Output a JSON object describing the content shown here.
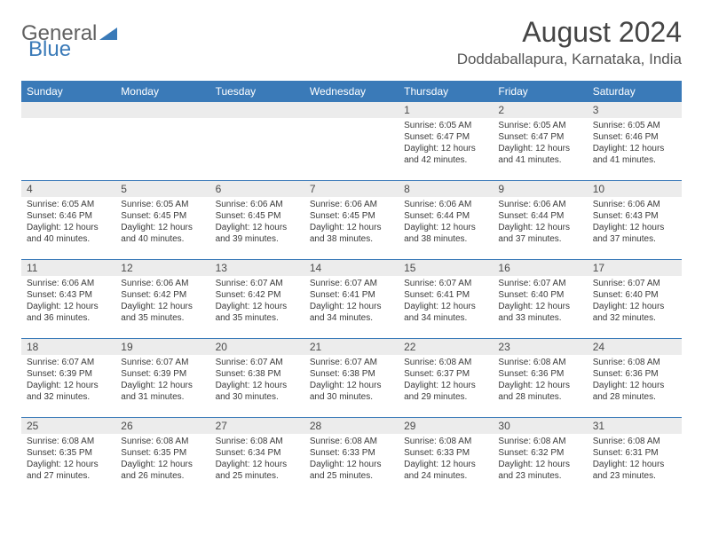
{
  "brand": {
    "part1": "General",
    "part2": "Blue"
  },
  "title": "August 2024",
  "location": "Doddaballapura, Karnataka, India",
  "colors": {
    "header_bar": "#3a7ab8",
    "day_num_bg": "#ececec",
    "week_divider": "#3a7ab8",
    "brand_gray": "#616161",
    "brand_blue": "#3a7ab8",
    "title_color": "#454545",
    "text_color": "#3a3a3a",
    "background": "#ffffff"
  },
  "typography": {
    "month_title_size": 32,
    "location_size": 17,
    "dow_size": 12,
    "daynum_size": 12,
    "body_size": 10,
    "font_family": "Arial"
  },
  "dow": [
    "Sunday",
    "Monday",
    "Tuesday",
    "Wednesday",
    "Thursday",
    "Friday",
    "Saturday"
  ],
  "weeks": [
    [
      {
        "n": "",
        "sr": "",
        "ss": "",
        "dl": "",
        "empty": true
      },
      {
        "n": "",
        "sr": "",
        "ss": "",
        "dl": "",
        "empty": true
      },
      {
        "n": "",
        "sr": "",
        "ss": "",
        "dl": "",
        "empty": true
      },
      {
        "n": "",
        "sr": "",
        "ss": "",
        "dl": "",
        "empty": true
      },
      {
        "n": "1",
        "sr": "Sunrise: 6:05 AM",
        "ss": "Sunset: 6:47 PM",
        "dl": "Daylight: 12 hours and 42 minutes."
      },
      {
        "n": "2",
        "sr": "Sunrise: 6:05 AM",
        "ss": "Sunset: 6:47 PM",
        "dl": "Daylight: 12 hours and 41 minutes."
      },
      {
        "n": "3",
        "sr": "Sunrise: 6:05 AM",
        "ss": "Sunset: 6:46 PM",
        "dl": "Daylight: 12 hours and 41 minutes."
      }
    ],
    [
      {
        "n": "4",
        "sr": "Sunrise: 6:05 AM",
        "ss": "Sunset: 6:46 PM",
        "dl": "Daylight: 12 hours and 40 minutes."
      },
      {
        "n": "5",
        "sr": "Sunrise: 6:05 AM",
        "ss": "Sunset: 6:45 PM",
        "dl": "Daylight: 12 hours and 40 minutes."
      },
      {
        "n": "6",
        "sr": "Sunrise: 6:06 AM",
        "ss": "Sunset: 6:45 PM",
        "dl": "Daylight: 12 hours and 39 minutes."
      },
      {
        "n": "7",
        "sr": "Sunrise: 6:06 AM",
        "ss": "Sunset: 6:45 PM",
        "dl": "Daylight: 12 hours and 38 minutes."
      },
      {
        "n": "8",
        "sr": "Sunrise: 6:06 AM",
        "ss": "Sunset: 6:44 PM",
        "dl": "Daylight: 12 hours and 38 minutes."
      },
      {
        "n": "9",
        "sr": "Sunrise: 6:06 AM",
        "ss": "Sunset: 6:44 PM",
        "dl": "Daylight: 12 hours and 37 minutes."
      },
      {
        "n": "10",
        "sr": "Sunrise: 6:06 AM",
        "ss": "Sunset: 6:43 PM",
        "dl": "Daylight: 12 hours and 37 minutes."
      }
    ],
    [
      {
        "n": "11",
        "sr": "Sunrise: 6:06 AM",
        "ss": "Sunset: 6:43 PM",
        "dl": "Daylight: 12 hours and 36 minutes."
      },
      {
        "n": "12",
        "sr": "Sunrise: 6:06 AM",
        "ss": "Sunset: 6:42 PM",
        "dl": "Daylight: 12 hours and 35 minutes."
      },
      {
        "n": "13",
        "sr": "Sunrise: 6:07 AM",
        "ss": "Sunset: 6:42 PM",
        "dl": "Daylight: 12 hours and 35 minutes."
      },
      {
        "n": "14",
        "sr": "Sunrise: 6:07 AM",
        "ss": "Sunset: 6:41 PM",
        "dl": "Daylight: 12 hours and 34 minutes."
      },
      {
        "n": "15",
        "sr": "Sunrise: 6:07 AM",
        "ss": "Sunset: 6:41 PM",
        "dl": "Daylight: 12 hours and 34 minutes."
      },
      {
        "n": "16",
        "sr": "Sunrise: 6:07 AM",
        "ss": "Sunset: 6:40 PM",
        "dl": "Daylight: 12 hours and 33 minutes."
      },
      {
        "n": "17",
        "sr": "Sunrise: 6:07 AM",
        "ss": "Sunset: 6:40 PM",
        "dl": "Daylight: 12 hours and 32 minutes."
      }
    ],
    [
      {
        "n": "18",
        "sr": "Sunrise: 6:07 AM",
        "ss": "Sunset: 6:39 PM",
        "dl": "Daylight: 12 hours and 32 minutes."
      },
      {
        "n": "19",
        "sr": "Sunrise: 6:07 AM",
        "ss": "Sunset: 6:39 PM",
        "dl": "Daylight: 12 hours and 31 minutes."
      },
      {
        "n": "20",
        "sr": "Sunrise: 6:07 AM",
        "ss": "Sunset: 6:38 PM",
        "dl": "Daylight: 12 hours and 30 minutes."
      },
      {
        "n": "21",
        "sr": "Sunrise: 6:07 AM",
        "ss": "Sunset: 6:38 PM",
        "dl": "Daylight: 12 hours and 30 minutes."
      },
      {
        "n": "22",
        "sr": "Sunrise: 6:08 AM",
        "ss": "Sunset: 6:37 PM",
        "dl": "Daylight: 12 hours and 29 minutes."
      },
      {
        "n": "23",
        "sr": "Sunrise: 6:08 AM",
        "ss": "Sunset: 6:36 PM",
        "dl": "Daylight: 12 hours and 28 minutes."
      },
      {
        "n": "24",
        "sr": "Sunrise: 6:08 AM",
        "ss": "Sunset: 6:36 PM",
        "dl": "Daylight: 12 hours and 28 minutes."
      }
    ],
    [
      {
        "n": "25",
        "sr": "Sunrise: 6:08 AM",
        "ss": "Sunset: 6:35 PM",
        "dl": "Daylight: 12 hours and 27 minutes."
      },
      {
        "n": "26",
        "sr": "Sunrise: 6:08 AM",
        "ss": "Sunset: 6:35 PM",
        "dl": "Daylight: 12 hours and 26 minutes."
      },
      {
        "n": "27",
        "sr": "Sunrise: 6:08 AM",
        "ss": "Sunset: 6:34 PM",
        "dl": "Daylight: 12 hours and 25 minutes."
      },
      {
        "n": "28",
        "sr": "Sunrise: 6:08 AM",
        "ss": "Sunset: 6:33 PM",
        "dl": "Daylight: 12 hours and 25 minutes."
      },
      {
        "n": "29",
        "sr": "Sunrise: 6:08 AM",
        "ss": "Sunset: 6:33 PM",
        "dl": "Daylight: 12 hours and 24 minutes."
      },
      {
        "n": "30",
        "sr": "Sunrise: 6:08 AM",
        "ss": "Sunset: 6:32 PM",
        "dl": "Daylight: 12 hours and 23 minutes."
      },
      {
        "n": "31",
        "sr": "Sunrise: 6:08 AM",
        "ss": "Sunset: 6:31 PM",
        "dl": "Daylight: 12 hours and 23 minutes."
      }
    ]
  ]
}
